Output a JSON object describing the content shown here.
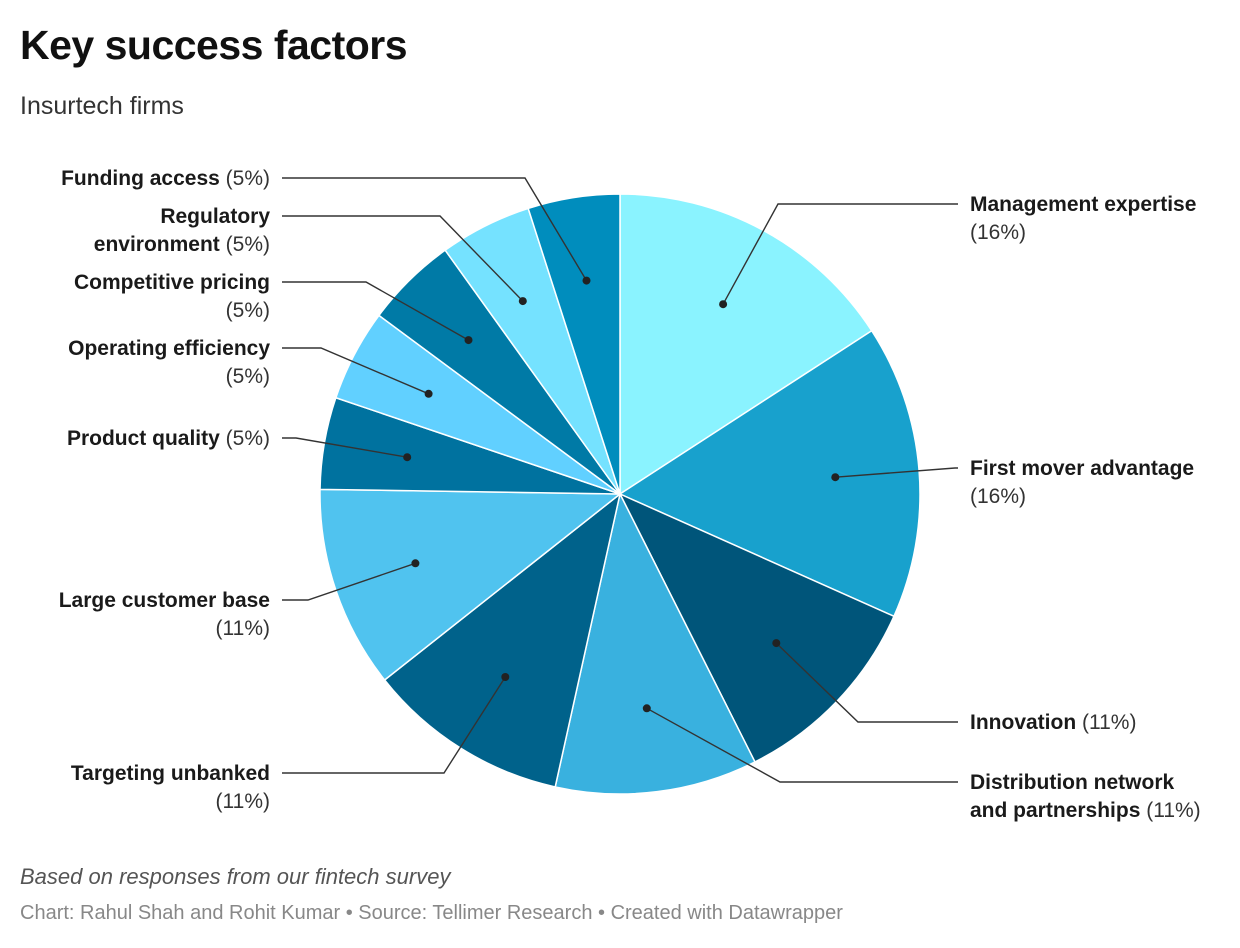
{
  "title": "Key success factors",
  "subtitle": "Insurtech firms",
  "note": "Based on responses from our fintech survey",
  "footer": "Chart: Rahul Shah and Rohit Kumar • Source: Tellimer Research • Created with Datawrapper",
  "chart_data": {
    "type": "pie",
    "title": "Key success factors",
    "subtitle": "Insurtech firms",
    "unit": "%",
    "slices": [
      {
        "label": "Management expertise",
        "value": 16,
        "color": "#8af3ff"
      },
      {
        "label": "First mover advantage",
        "value": 16,
        "color": "#18a1cd"
      },
      {
        "label": "Innovation",
        "value": 11,
        "color": "#00557a"
      },
      {
        "label": "Distribution network and partnerships",
        "value": 11,
        "color": "#39b1df"
      },
      {
        "label": "Targeting unbanked",
        "value": 11,
        "color": "#00628b"
      },
      {
        "label": "Large customer base",
        "value": 11,
        "color": "#50c3ef"
      },
      {
        "label": "Product quality",
        "value": 5,
        "color": "#00729f"
      },
      {
        "label": "Operating efficiency",
        "value": 5,
        "color": "#61d0ff"
      },
      {
        "label": "Competitive pricing",
        "value": 5,
        "color": "#007aa6"
      },
      {
        "label": "Regulatory environment",
        "value": 5,
        "color": "#75e2ff"
      },
      {
        "label": "Funding access",
        "value": 5,
        "color": "#008dbd"
      }
    ],
    "legend": "none"
  }
}
